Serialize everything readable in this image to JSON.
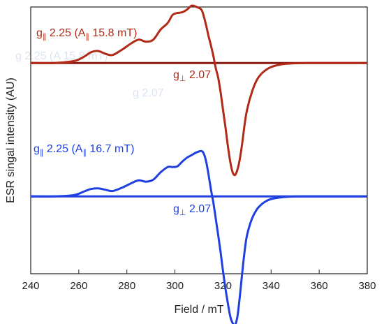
{
  "chart_data": {
    "type": "line",
    "title": "",
    "xlabel": "Field / mT",
    "ylabel": "ESR singal intensity (AU)",
    "xlim": [
      240,
      380
    ],
    "xticks": [
      240,
      260,
      280,
      300,
      320,
      340,
      360,
      380
    ],
    "ylim": [
      -1.0,
      1.0
    ],
    "y_units": "AU (arbitrary, no numeric ticks)",
    "grid": false,
    "legend": "none",
    "colors": {
      "upper_trace": "#b02a17",
      "lower_trace": "#1f3fe0",
      "upper_baseline": "#8b1a10",
      "lower_baseline": "#1f3fe0",
      "axis": "#222222",
      "ghost_text": "#dde4ef"
    },
    "series": [
      {
        "color": "#b02a17",
        "offset": 0.58,
        "x": [
          240,
          250,
          258,
          262,
          265,
          268,
          271,
          274,
          278,
          282,
          285,
          288,
          291,
          294,
          297,
          299,
          301,
          303,
          305,
          307,
          309,
          311,
          312,
          313,
          314,
          315,
          316,
          317,
          318,
          319,
          320,
          321,
          322,
          323,
          324,
          325,
          326,
          327,
          328,
          329,
          330,
          332,
          334,
          336,
          338,
          340,
          343,
          346,
          350,
          355,
          360,
          370,
          380
        ],
        "y": [
          0.0,
          0.0,
          0.015,
          0.045,
          0.08,
          0.09,
          0.07,
          0.06,
          0.1,
          0.15,
          0.175,
          0.16,
          0.175,
          0.25,
          0.3,
          0.36,
          0.375,
          0.38,
          0.4,
          0.43,
          0.42,
          0.4,
          0.35,
          0.28,
          0.2,
          0.13,
          0.05,
          -0.04,
          -0.11,
          -0.22,
          -0.35,
          -0.48,
          -0.62,
          -0.74,
          -0.82,
          -0.84,
          -0.8,
          -0.72,
          -0.6,
          -0.46,
          -0.35,
          -0.22,
          -0.13,
          -0.08,
          -0.05,
          -0.03,
          -0.015,
          -0.006,
          -0.002,
          0.0,
          0.0,
          0.0,
          0.0
        ]
      },
      {
        "color": "#1f3fe0",
        "offset": -0.42,
        "x": [
          240,
          250,
          258,
          262,
          265,
          268,
          271,
          274,
          278,
          282,
          285,
          288,
          291,
          294,
          297,
          299,
          301,
          303,
          305,
          307,
          309,
          311,
          312,
          313,
          314,
          315,
          316,
          317,
          318,
          319,
          320,
          321,
          322,
          323,
          324,
          325,
          326,
          327,
          328,
          329,
          330,
          332,
          334,
          336,
          338,
          340,
          343,
          346,
          350,
          355,
          360,
          370,
          380
        ],
        "y": [
          0.0,
          0.0,
          0.01,
          0.035,
          0.055,
          0.06,
          0.05,
          0.04,
          0.065,
          0.1,
          0.12,
          0.11,
          0.125,
          0.18,
          0.22,
          0.22,
          0.225,
          0.26,
          0.29,
          0.31,
          0.33,
          0.34,
          0.32,
          0.26,
          0.16,
          0.05,
          -0.05,
          -0.17,
          -0.29,
          -0.42,
          -0.56,
          -0.69,
          -0.8,
          -0.9,
          -0.95,
          -0.965,
          -0.9,
          -0.75,
          -0.57,
          -0.41,
          -0.29,
          -0.17,
          -0.1,
          -0.06,
          -0.035,
          -0.02,
          -0.01,
          -0.004,
          -0.001,
          0.0,
          0.0,
          0.0,
          0.0
        ]
      }
    ],
    "annotations": {
      "upper_g_parallel": {
        "prefix": "g",
        "sub": "∥",
        "text": " 2.25 (A",
        "sub2": "∥",
        "text2": " 15.8 mT)",
        "color": "#b02a17"
      },
      "upper_g_perp": {
        "prefix": "g",
        "sub": "⊥",
        "text": " 2.07",
        "color": "#b02a17"
      },
      "lower_g_parallel": {
        "prefix": "g",
        "sub": "∥",
        "text": " 2.25 (A",
        "sub2": "∥",
        "text2": " 16.7 mT)",
        "color": "#1f3fe0"
      },
      "lower_g_perp": {
        "prefix": "g",
        "sub": "⊥",
        "text": " 2.07",
        "color": "#1f3fe0"
      },
      "ghost_line_1": "g   2.25 (A   15.8 mT)",
      "ghost_line_2": "g   2.07"
    }
  }
}
